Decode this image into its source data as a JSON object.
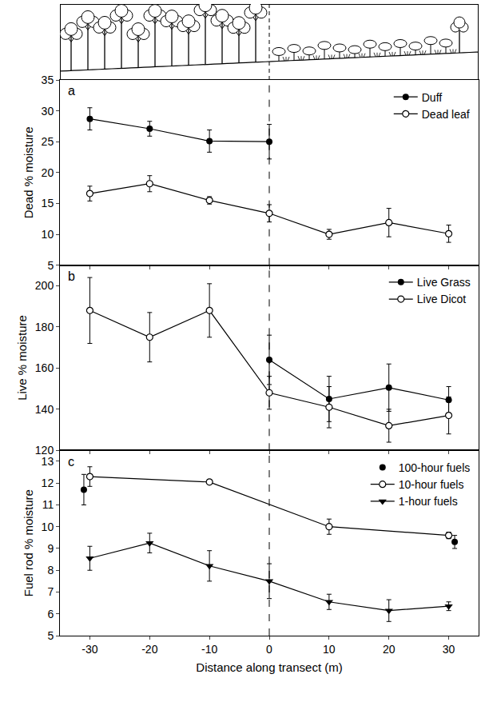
{
  "chart_data": [
    {
      "type": "line",
      "panel": "a",
      "ylabel": "Dead % moisture",
      "xlim": [
        -35,
        35
      ],
      "xticks": [
        -30,
        -20,
        -10,
        0,
        10,
        20,
        30
      ],
      "ylim": [
        5,
        35
      ],
      "yticks": [
        5,
        10,
        15,
        20,
        25,
        30,
        35
      ],
      "tick_labels": "y",
      "grid": false,
      "legend": "upper right",
      "reference_x": 0,
      "series": [
        {
          "name": "Duff",
          "color": "#000000",
          "marker": "filled_circle",
          "line_style": "solid",
          "x": [
            -30,
            -20,
            -10,
            0
          ],
          "values": [
            28.7,
            27.1,
            25.1,
            25.0
          ],
          "errors": [
            1.8,
            1.2,
            1.8,
            2.8
          ]
        },
        {
          "name": "Dead leaf",
          "color": "#000000",
          "marker": "open_circle",
          "line_style": "solid",
          "x": [
            -30,
            -20,
            -10,
            0,
            10,
            20,
            30
          ],
          "values": [
            16.6,
            18.2,
            15.5,
            13.4,
            10.0,
            11.9,
            10.1
          ],
          "errors": [
            1.2,
            1.3,
            0.6,
            1.4,
            0.8,
            2.3,
            1.4
          ]
        }
      ]
    },
    {
      "type": "line",
      "panel": "b",
      "ylabel": "Live % moisture",
      "xlim": [
        -35,
        35
      ],
      "xticks": [
        -30,
        -20,
        -10,
        0,
        10,
        20,
        30
      ],
      "ylim": [
        120,
        210
      ],
      "yticks": [
        120,
        140,
        160,
        180,
        200
      ],
      "tick_labels": "y",
      "grid": false,
      "legend": "upper right",
      "reference_x": 0,
      "series": [
        {
          "name": "Live Grass",
          "color": "#000000",
          "marker": "filled_circle",
          "line_style": "solid",
          "x": [
            0,
            10,
            20,
            30
          ],
          "values": [
            164,
            145,
            150.5,
            144.5
          ],
          "errors": [
            12,
            11,
            11.5,
            6.5
          ]
        },
        {
          "name": "Live Dicot",
          "color": "#000000",
          "marker": "open_circle",
          "line_style": "solid",
          "x": [
            -30,
            -20,
            -10,
            0,
            10,
            20,
            30
          ],
          "values": [
            188,
            175,
            188,
            148,
            141,
            132,
            137
          ],
          "errors": [
            16,
            12,
            13,
            8,
            10,
            8,
            9
          ]
        }
      ]
    },
    {
      "type": "line",
      "panel": "c",
      "ylabel": "Fuel rod % moisture",
      "xlabel": "Distance along transect (m)",
      "xlim": [
        -35,
        35
      ],
      "xticks": [
        -30,
        -20,
        -10,
        0,
        10,
        20,
        30
      ],
      "ylim": [
        5,
        13.5
      ],
      "yticks": [
        5,
        6,
        7,
        8,
        9,
        10,
        11,
        12,
        13
      ],
      "grid": false,
      "legend": "upper right",
      "reference_x": 0,
      "series": [
        {
          "name": "100-hour fuels",
          "color": "#000000",
          "marker": "filled_circle",
          "line_style": "none",
          "x": [
            -31,
            31
          ],
          "values": [
            11.7,
            9.3
          ],
          "errors": [
            0.7,
            0.3
          ]
        },
        {
          "name": "10-hour fuels",
          "color": "#000000",
          "marker": "open_circle",
          "line_style": "solid",
          "x": [
            -30,
            -10,
            10,
            30
          ],
          "values": [
            12.3,
            12.05,
            10.0,
            9.6
          ],
          "errors": [
            0.45,
            0.1,
            0.35,
            0.15
          ]
        },
        {
          "name": "1-hour fuels",
          "color": "#000000",
          "marker": "filled_triangle_down",
          "line_style": "solid",
          "x": [
            -30,
            -20,
            -10,
            0,
            10,
            20,
            30
          ],
          "values": [
            8.55,
            9.25,
            8.2,
            7.5,
            6.55,
            6.15,
            6.35
          ],
          "errors": [
            0.55,
            0.45,
            0.7,
            0.8,
            0.35,
            0.5,
            0.2
          ]
        }
      ]
    }
  ]
}
